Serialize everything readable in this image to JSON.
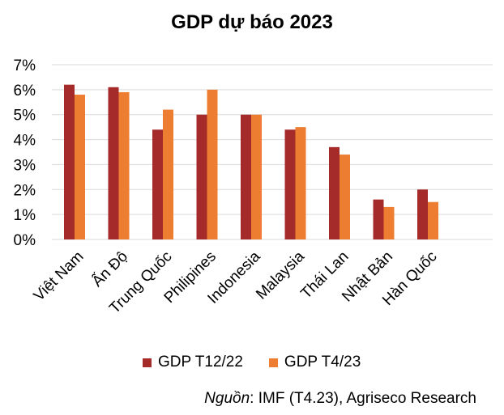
{
  "chart_data": {
    "type": "bar",
    "title": "GDP dự báo 2023",
    "categories": [
      "Việt Nam",
      "Ấn Độ",
      "Trung Quốc",
      "Philipines",
      "Indonesia",
      "Malaysia",
      "Thái Lan",
      "Nhật Bản",
      "Hàn Quốc"
    ],
    "series": [
      {
        "name": "GDP T12/22",
        "color": "#A52A2A",
        "values": [
          6.2,
          6.1,
          4.4,
          5.0,
          5.0,
          4.4,
          3.7,
          1.6,
          2.0
        ]
      },
      {
        "name": "GDP T4/23",
        "color": "#ED7D31",
        "values": [
          5.8,
          5.9,
          5.2,
          6.0,
          5.0,
          4.5,
          3.4,
          1.3,
          1.5
        ]
      }
    ],
    "ylim": [
      0,
      7
    ],
    "yticks": [
      "0%",
      "1%",
      "2%",
      "3%",
      "4%",
      "5%",
      "6%",
      "7%"
    ],
    "xlabel": "",
    "ylabel": "",
    "grid": true,
    "legend_position": "bottom"
  },
  "source": {
    "label": "Nguồn",
    "text": ": IMF (T4.23), Agriseco Research"
  }
}
